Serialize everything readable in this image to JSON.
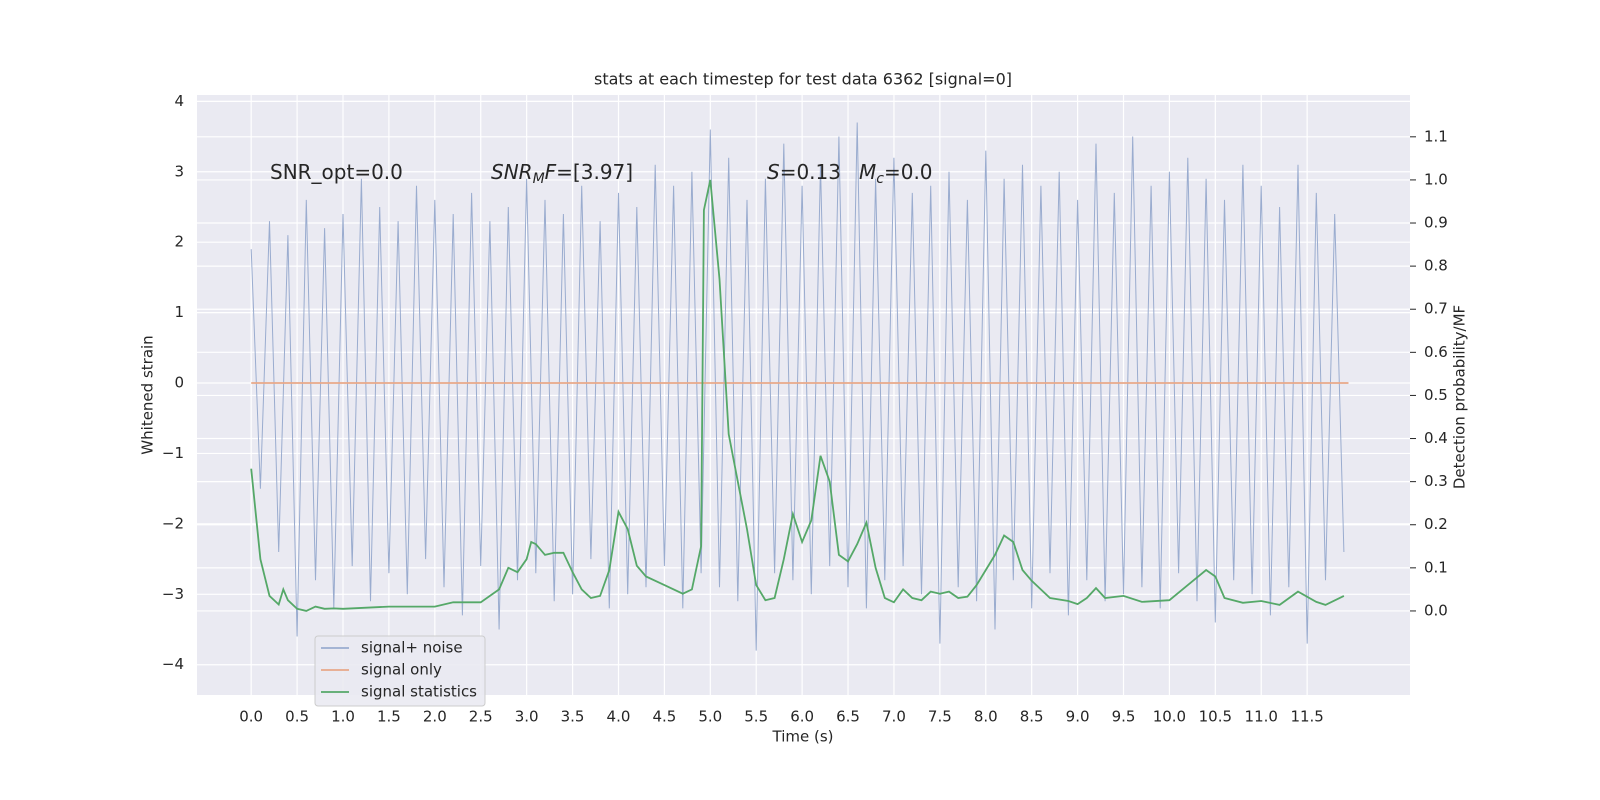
{
  "chart_data": {
    "type": "line",
    "title": "stats at each timestep for test data 6362 [signal=0]",
    "x_label": "Time (s)",
    "y_label": "Whitened strain",
    "y2_label": "Detection probability/MF",
    "annotations": [
      [
        {
          "text": "SNR_opt=0.0"
        }
      ],
      [
        {
          "text": "SNR",
          "italic": true
        },
        {
          "text": "M",
          "italic": true,
          "sub": true
        },
        {
          "text": "F",
          "italic": true
        },
        {
          "text": "=[3.97]"
        }
      ],
      [
        {
          "text": "S",
          "italic": true
        },
        {
          "text": "=0.13"
        }
      ],
      [
        {
          "text": "M",
          "italic": true
        },
        {
          "text": "c",
          "italic": true,
          "sub": true
        },
        {
          "text": "=0.0"
        }
      ]
    ],
    "xlim": [
      -0.59,
      12.62
    ],
    "ylim": [
      -4.43,
      4.09
    ],
    "y2lim": [
      -0.195,
      1.197
    ],
    "xticks": [
      {
        "value": 0,
        "label": "0.0"
      },
      0.5,
      {
        "value": 1,
        "label": "1.0"
      },
      1.5,
      {
        "value": 2,
        "label": "2.0"
      },
      2.5,
      {
        "value": 3,
        "label": "3.0"
      },
      3.5,
      {
        "value": 4,
        "label": "4.0"
      },
      4.5,
      {
        "value": 5,
        "label": "5.0"
      },
      5.5,
      {
        "value": 6,
        "label": "6.0"
      },
      6.5,
      {
        "value": 7,
        "label": "7.0"
      },
      7.5,
      {
        "value": 8,
        "label": "8.0"
      },
      8.5,
      {
        "value": 9,
        "label": "9.0"
      },
      9.5,
      {
        "value": 10,
        "label": "10.0"
      },
      10.5,
      {
        "value": 11,
        "label": "11.0"
      },
      11.5
    ],
    "yticks": [
      {
        "value": -4,
        "label": "−4"
      },
      {
        "value": -3,
        "label": "−3"
      },
      {
        "value": -2,
        "label": "−2"
      },
      {
        "value": -1,
        "label": "−1"
      },
      0,
      1,
      2,
      3,
      4
    ],
    "y2ticks": [
      {
        "value": 0,
        "label": "0.0"
      },
      0.1,
      0.2,
      0.3,
      0.4,
      0.5,
      0.6,
      0.7,
      0.8,
      0.9,
      {
        "value": 1,
        "label": "1.0"
      },
      1.1
    ],
    "grid": true,
    "legend": "lower left",
    "series": [
      {
        "name": "signal+ noise",
        "color": "#9aaccf",
        "x": [
          0.0,
          0.1,
          0.2,
          0.3,
          0.4,
          0.5,
          0.6,
          0.7,
          0.8,
          0.9,
          1.0,
          1.1,
          1.2,
          1.3,
          1.4,
          1.5,
          1.6,
          1.7,
          1.8,
          1.9,
          2.0,
          2.1,
          2.2,
          2.3,
          2.4,
          2.5,
          2.6,
          2.7,
          2.8,
          2.9,
          3.0,
          3.1,
          3.2,
          3.3,
          3.4,
          3.5,
          3.6,
          3.7,
          3.8,
          3.9,
          4.0,
          4.1,
          4.2,
          4.3,
          4.4,
          4.5,
          4.6,
          4.7,
          4.8,
          4.9,
          5.0,
          5.1,
          5.2,
          5.3,
          5.4,
          5.5,
          5.6,
          5.7,
          5.8,
          5.9,
          6.0,
          6.1,
          6.2,
          6.3,
          6.4,
          6.5,
          6.6,
          6.7,
          6.8,
          6.9,
          7.0,
          7.1,
          7.2,
          7.3,
          7.4,
          7.5,
          7.6,
          7.7,
          7.8,
          7.9,
          8.0,
          8.1,
          8.2,
          8.3,
          8.4,
          8.5,
          8.6,
          8.7,
          8.8,
          8.9,
          9.0,
          9.1,
          9.2,
          9.3,
          9.4,
          9.5,
          9.6,
          9.7,
          9.8,
          9.9,
          10.0,
          10.1,
          10.2,
          10.3,
          10.4,
          10.5,
          10.6,
          10.7,
          10.8,
          10.9,
          11.0,
          11.1,
          11.2,
          11.3,
          11.4,
          11.5,
          11.6,
          11.7,
          11.8,
          11.9
        ],
        "values": [
          1.9,
          -1.5,
          2.3,
          -2.4,
          2.1,
          -3.6,
          2.6,
          -2.8,
          2.2,
          -3.2,
          2.4,
          -2.6,
          2.9,
          -3.1,
          2.5,
          -2.7,
          2.3,
          -3.0,
          2.8,
          -2.5,
          2.6,
          -2.9,
          2.4,
          -3.3,
          2.7,
          -2.6,
          2.3,
          -3.5,
          2.5,
          -2.8,
          2.9,
          -2.7,
          2.6,
          -3.1,
          2.4,
          -3.0,
          2.8,
          -2.5,
          2.3,
          -3.2,
          2.7,
          -3.0,
          2.5,
          -2.9,
          3.1,
          -2.6,
          2.8,
          -3.2,
          3.0,
          -2.7,
          3.6,
          -2.9,
          3.2,
          -3.1,
          2.6,
          -3.8,
          2.9,
          -2.7,
          3.4,
          -2.8,
          2.8,
          -3.0,
          3.1,
          -2.6,
          3.5,
          -2.9,
          3.7,
          -3.2,
          2.9,
          -2.8,
          3.2,
          -2.6,
          2.7,
          -3.0,
          2.8,
          -3.7,
          3.0,
          -2.9,
          2.6,
          -3.1,
          3.3,
          -3.5,
          2.9,
          -2.8,
          3.1,
          -3.2,
          2.8,
          -2.7,
          3.0,
          -3.3,
          2.6,
          -2.8,
          3.4,
          -3.1,
          2.7,
          -3.0,
          3.5,
          -2.9,
          2.8,
          -3.2,
          3.0,
          -2.7,
          3.2,
          -3.1,
          2.9,
          -3.4,
          2.6,
          -2.8,
          3.1,
          -3.0,
          2.8,
          -3.3,
          2.5,
          -2.9,
          3.1,
          -3.7,
          2.7,
          -2.8,
          2.4,
          -2.4
        ]
      },
      {
        "name": "signal only",
        "color": "#e8a888",
        "x": [
          0.0,
          11.95
        ],
        "values": [
          0,
          0
        ]
      },
      {
        "name": "signal statistics",
        "color": "#55a868",
        "axis": "y2",
        "x": [
          0,
          0.1,
          0.2,
          0.3,
          0.35,
          0.4,
          0.5,
          0.6,
          0.7,
          0.8,
          0.9,
          1.0,
          1.5,
          2.0,
          2.2,
          2.5,
          2.7,
          2.8,
          2.9,
          3.0,
          3.05,
          3.1,
          3.2,
          3.3,
          3.4,
          3.5,
          3.6,
          3.7,
          3.8,
          3.9,
          4.0,
          4.1,
          4.2,
          4.3,
          4.5,
          4.7,
          4.8,
          4.9,
          4.93,
          5.0,
          5.1,
          5.2,
          5.3,
          5.4,
          5.5,
          5.6,
          5.7,
          5.8,
          5.9,
          6.0,
          6.1,
          6.2,
          6.3,
          6.4,
          6.5,
          6.6,
          6.7,
          6.8,
          6.9,
          7.0,
          7.1,
          7.2,
          7.3,
          7.4,
          7.5,
          7.6,
          7.7,
          7.8,
          7.9,
          8.0,
          8.1,
          8.2,
          8.3,
          8.4,
          8.5,
          8.7,
          8.9,
          9.0,
          9.1,
          9.2,
          9.3,
          9.5,
          9.7,
          10.0,
          10.2,
          10.4,
          10.5,
          10.6,
          10.8,
          11.0,
          11.2,
          11.4,
          11.6,
          11.7,
          11.9
        ],
        "values": [
          0.33,
          0.12,
          0.035,
          0.015,
          0.05,
          0.025,
          0.005,
          0.0,
          0.01,
          0.005,
          0.006,
          0.005,
          0.01,
          0.01,
          0.02,
          0.02,
          0.05,
          0.1,
          0.09,
          0.12,
          0.16,
          0.155,
          0.13,
          0.135,
          0.135,
          0.09,
          0.05,
          0.03,
          0.035,
          0.095,
          0.23,
          0.19,
          0.105,
          0.08,
          0.06,
          0.04,
          0.05,
          0.15,
          0.93,
          1.0,
          0.77,
          0.41,
          0.3,
          0.19,
          0.06,
          0.025,
          0.03,
          0.12,
          0.225,
          0.16,
          0.21,
          0.36,
          0.3,
          0.13,
          0.115,
          0.155,
          0.205,
          0.1,
          0.03,
          0.02,
          0.05,
          0.03,
          0.025,
          0.045,
          0.04,
          0.045,
          0.03,
          0.033,
          0.06,
          0.095,
          0.13,
          0.175,
          0.16,
          0.095,
          0.07,
          0.03,
          0.023,
          0.016,
          0.03,
          0.053,
          0.03,
          0.035,
          0.021,
          0.025,
          0.06,
          0.095,
          0.08,
          0.03,
          0.019,
          0.023,
          0.014,
          0.045,
          0.021,
          0.014,
          0.035
        ]
      }
    ]
  }
}
